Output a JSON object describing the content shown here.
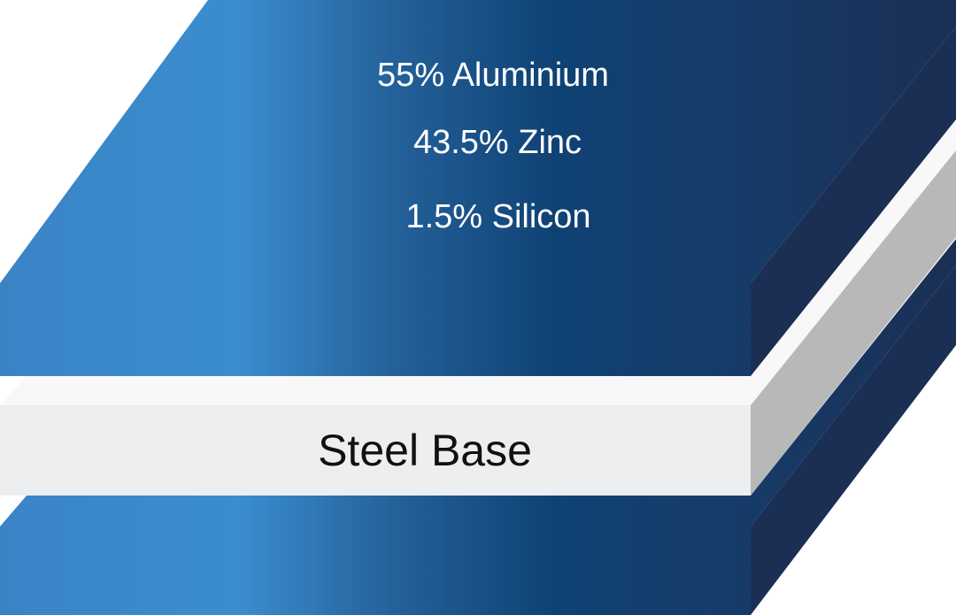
{
  "coating": {
    "components": [
      "55% Aluminium",
      "43.5% Zinc",
      "1.5% Silicon"
    ]
  },
  "base": {
    "label": "Steel Base"
  },
  "colors": {
    "coating_light": "#3b8dcf",
    "coating_mid": "#0f4274",
    "coating_dark": "#1b2f55",
    "steel_front": "#eceeef",
    "steel_top": "#f8f8f8",
    "steel_side": "#b8b8b8"
  }
}
